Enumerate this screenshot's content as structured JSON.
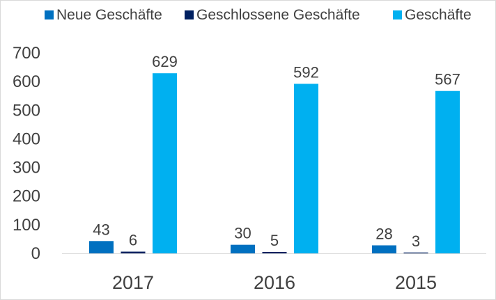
{
  "chart_data": {
    "type": "bar",
    "title": "",
    "xlabel": "",
    "ylabel": "",
    "categories": [
      "2017",
      "2016",
      "2015"
    ],
    "series": [
      {
        "name": "Neue Geschäfte",
        "values": [
          43,
          30,
          28
        ],
        "color": "#0070c0"
      },
      {
        "name": "Geschlossene Geschäfte",
        "values": [
          6,
          5,
          3
        ],
        "color": "#002060"
      },
      {
        "name": "Geschäfte",
        "values": [
          629,
          592,
          567
        ],
        "color": "#00b0f0"
      }
    ],
    "ylim": [
      0,
      700
    ],
    "yticks": [
      0,
      100,
      200,
      300,
      400,
      500,
      600,
      700
    ],
    "grid": false,
    "legend_position": "top"
  }
}
